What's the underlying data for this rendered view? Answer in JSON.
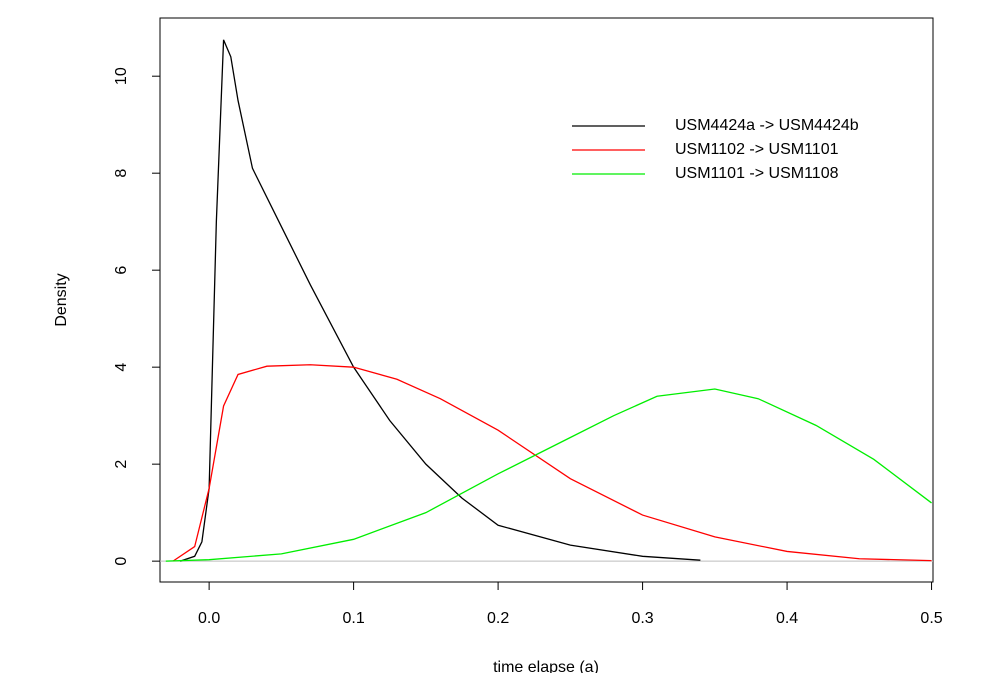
{
  "chart_data": {
    "type": "line",
    "xlabel": "time elapse (a)",
    "ylabel": "Density",
    "xlim": [
      -0.034,
      0.501
    ],
    "ylim": [
      -0.43,
      11.2
    ],
    "xticks": [
      {
        "value": 0,
        "label": "0.0"
      },
      0.1,
      0.2,
      0.3,
      0.4,
      0.5
    ],
    "yticks": [
      0,
      2,
      4,
      6,
      8,
      10
    ],
    "legend": "topright",
    "series": [
      {
        "name": "USM4424a -> USM4424b",
        "color": "#000000",
        "x": [
          -0.02,
          -0.01,
          -0.005,
          0,
          0.005,
          0.01,
          0.015,
          0.02,
          0.03,
          0.05,
          0.07,
          0.1,
          0.125,
          0.15,
          0.175,
          0.2,
          0.25,
          0.3,
          0.34
        ],
        "values": [
          0,
          0.1,
          0.4,
          1.5,
          7,
          10.75,
          10.4,
          9.5,
          8.1,
          6.9,
          5.7,
          4.0,
          2.9,
          2.0,
          1.3,
          0.74,
          0.33,
          0.1,
          0.02
        ]
      },
      {
        "name": "USM1102 -> USM1101",
        "color": "#ff0000",
        "x": [
          -0.025,
          -0.01,
          0,
          0.01,
          0.02,
          0.04,
          0.07,
          0.1,
          0.13,
          0.16,
          0.2,
          0.25,
          0.3,
          0.35,
          0.4,
          0.45,
          0.5
        ],
        "values": [
          0,
          0.3,
          1.5,
          3.2,
          3.85,
          4.02,
          4.05,
          4.0,
          3.75,
          3.35,
          2.7,
          1.7,
          0.95,
          0.5,
          0.2,
          0.05,
          0.01
        ]
      },
      {
        "name": "USM1101 -> USM1108",
        "color": "#00ee00",
        "x": [
          -0.03,
          0,
          0.05,
          0.1,
          0.15,
          0.2,
          0.25,
          0.28,
          0.31,
          0.35,
          0.38,
          0.42,
          0.46,
          0.5
        ],
        "values": [
          0,
          0.03,
          0.15,
          0.45,
          1.0,
          1.8,
          2.55,
          3.0,
          3.4,
          3.55,
          3.35,
          2.8,
          2.1,
          1.2
        ]
      }
    ]
  }
}
